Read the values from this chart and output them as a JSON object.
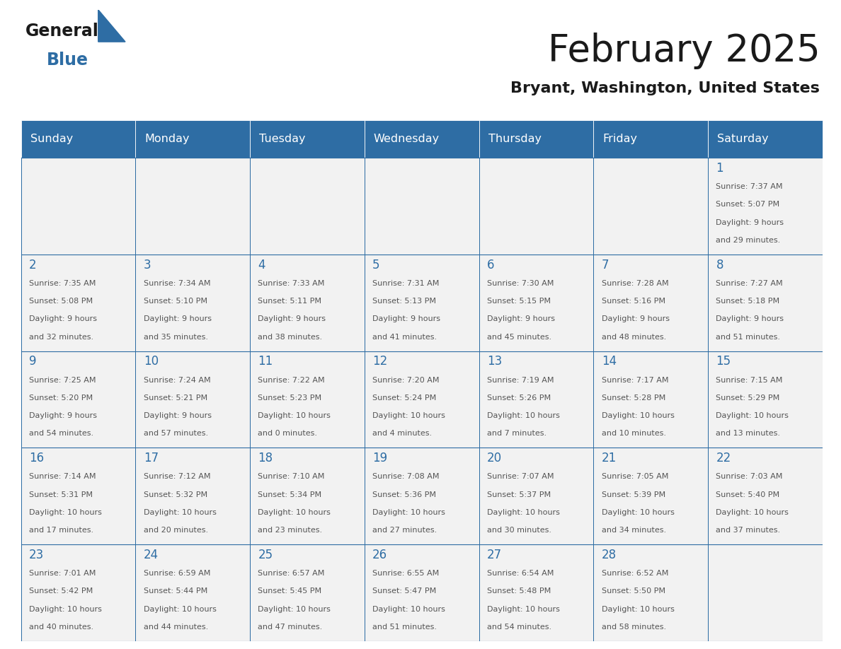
{
  "title": "February 2025",
  "subtitle": "Bryant, Washington, United States",
  "header_bg": "#2E6DA4",
  "header_text_color": "#FFFFFF",
  "cell_bg": "#F2F2F2",
  "border_color": "#2E6DA4",
  "day_names": [
    "Sunday",
    "Monday",
    "Tuesday",
    "Wednesday",
    "Thursday",
    "Friday",
    "Saturday"
  ],
  "days": [
    {
      "day": 1,
      "col": 6,
      "row": 0,
      "sunrise": "7:37 AM",
      "sunset": "5:07 PM",
      "daylight": "9 hours\nand 29 minutes."
    },
    {
      "day": 2,
      "col": 0,
      "row": 1,
      "sunrise": "7:35 AM",
      "sunset": "5:08 PM",
      "daylight": "9 hours\nand 32 minutes."
    },
    {
      "day": 3,
      "col": 1,
      "row": 1,
      "sunrise": "7:34 AM",
      "sunset": "5:10 PM",
      "daylight": "9 hours\nand 35 minutes."
    },
    {
      "day": 4,
      "col": 2,
      "row": 1,
      "sunrise": "7:33 AM",
      "sunset": "5:11 PM",
      "daylight": "9 hours\nand 38 minutes."
    },
    {
      "day": 5,
      "col": 3,
      "row": 1,
      "sunrise": "7:31 AM",
      "sunset": "5:13 PM",
      "daylight": "9 hours\nand 41 minutes."
    },
    {
      "day": 6,
      "col": 4,
      "row": 1,
      "sunrise": "7:30 AM",
      "sunset": "5:15 PM",
      "daylight": "9 hours\nand 45 minutes."
    },
    {
      "day": 7,
      "col": 5,
      "row": 1,
      "sunrise": "7:28 AM",
      "sunset": "5:16 PM",
      "daylight": "9 hours\nand 48 minutes."
    },
    {
      "day": 8,
      "col": 6,
      "row": 1,
      "sunrise": "7:27 AM",
      "sunset": "5:18 PM",
      "daylight": "9 hours\nand 51 minutes."
    },
    {
      "day": 9,
      "col": 0,
      "row": 2,
      "sunrise": "7:25 AM",
      "sunset": "5:20 PM",
      "daylight": "9 hours\nand 54 minutes."
    },
    {
      "day": 10,
      "col": 1,
      "row": 2,
      "sunrise": "7:24 AM",
      "sunset": "5:21 PM",
      "daylight": "9 hours\nand 57 minutes."
    },
    {
      "day": 11,
      "col": 2,
      "row": 2,
      "sunrise": "7:22 AM",
      "sunset": "5:23 PM",
      "daylight": "10 hours\nand 0 minutes."
    },
    {
      "day": 12,
      "col": 3,
      "row": 2,
      "sunrise": "7:20 AM",
      "sunset": "5:24 PM",
      "daylight": "10 hours\nand 4 minutes."
    },
    {
      "day": 13,
      "col": 4,
      "row": 2,
      "sunrise": "7:19 AM",
      "sunset": "5:26 PM",
      "daylight": "10 hours\nand 7 minutes."
    },
    {
      "day": 14,
      "col": 5,
      "row": 2,
      "sunrise": "7:17 AM",
      "sunset": "5:28 PM",
      "daylight": "10 hours\nand 10 minutes."
    },
    {
      "day": 15,
      "col": 6,
      "row": 2,
      "sunrise": "7:15 AM",
      "sunset": "5:29 PM",
      "daylight": "10 hours\nand 13 minutes."
    },
    {
      "day": 16,
      "col": 0,
      "row": 3,
      "sunrise": "7:14 AM",
      "sunset": "5:31 PM",
      "daylight": "10 hours\nand 17 minutes."
    },
    {
      "day": 17,
      "col": 1,
      "row": 3,
      "sunrise": "7:12 AM",
      "sunset": "5:32 PM",
      "daylight": "10 hours\nand 20 minutes."
    },
    {
      "day": 18,
      "col": 2,
      "row": 3,
      "sunrise": "7:10 AM",
      "sunset": "5:34 PM",
      "daylight": "10 hours\nand 23 minutes."
    },
    {
      "day": 19,
      "col": 3,
      "row": 3,
      "sunrise": "7:08 AM",
      "sunset": "5:36 PM",
      "daylight": "10 hours\nand 27 minutes."
    },
    {
      "day": 20,
      "col": 4,
      "row": 3,
      "sunrise": "7:07 AM",
      "sunset": "5:37 PM",
      "daylight": "10 hours\nand 30 minutes."
    },
    {
      "day": 21,
      "col": 5,
      "row": 3,
      "sunrise": "7:05 AM",
      "sunset": "5:39 PM",
      "daylight": "10 hours\nand 34 minutes."
    },
    {
      "day": 22,
      "col": 6,
      "row": 3,
      "sunrise": "7:03 AM",
      "sunset": "5:40 PM",
      "daylight": "10 hours\nand 37 minutes."
    },
    {
      "day": 23,
      "col": 0,
      "row": 4,
      "sunrise": "7:01 AM",
      "sunset": "5:42 PM",
      "daylight": "10 hours\nand 40 minutes."
    },
    {
      "day": 24,
      "col": 1,
      "row": 4,
      "sunrise": "6:59 AM",
      "sunset": "5:44 PM",
      "daylight": "10 hours\nand 44 minutes."
    },
    {
      "day": 25,
      "col": 2,
      "row": 4,
      "sunrise": "6:57 AM",
      "sunset": "5:45 PM",
      "daylight": "10 hours\nand 47 minutes."
    },
    {
      "day": 26,
      "col": 3,
      "row": 4,
      "sunrise": "6:55 AM",
      "sunset": "5:47 PM",
      "daylight": "10 hours\nand 51 minutes."
    },
    {
      "day": 27,
      "col": 4,
      "row": 4,
      "sunrise": "6:54 AM",
      "sunset": "5:48 PM",
      "daylight": "10 hours\nand 54 minutes."
    },
    {
      "day": 28,
      "col": 5,
      "row": 4,
      "sunrise": "6:52 AM",
      "sunset": "5:50 PM",
      "daylight": "10 hours\nand 58 minutes."
    }
  ],
  "num_rows": 5,
  "text_color_dark": "#555555",
  "text_color_blue": "#2E6DA4",
  "logo_general_color": "#1a1a1a",
  "logo_blue_color": "#2E6DA4",
  "logo_triangle_color": "#2E6DA4",
  "title_color": "#1a1a1a",
  "subtitle_color": "#1a1a1a"
}
